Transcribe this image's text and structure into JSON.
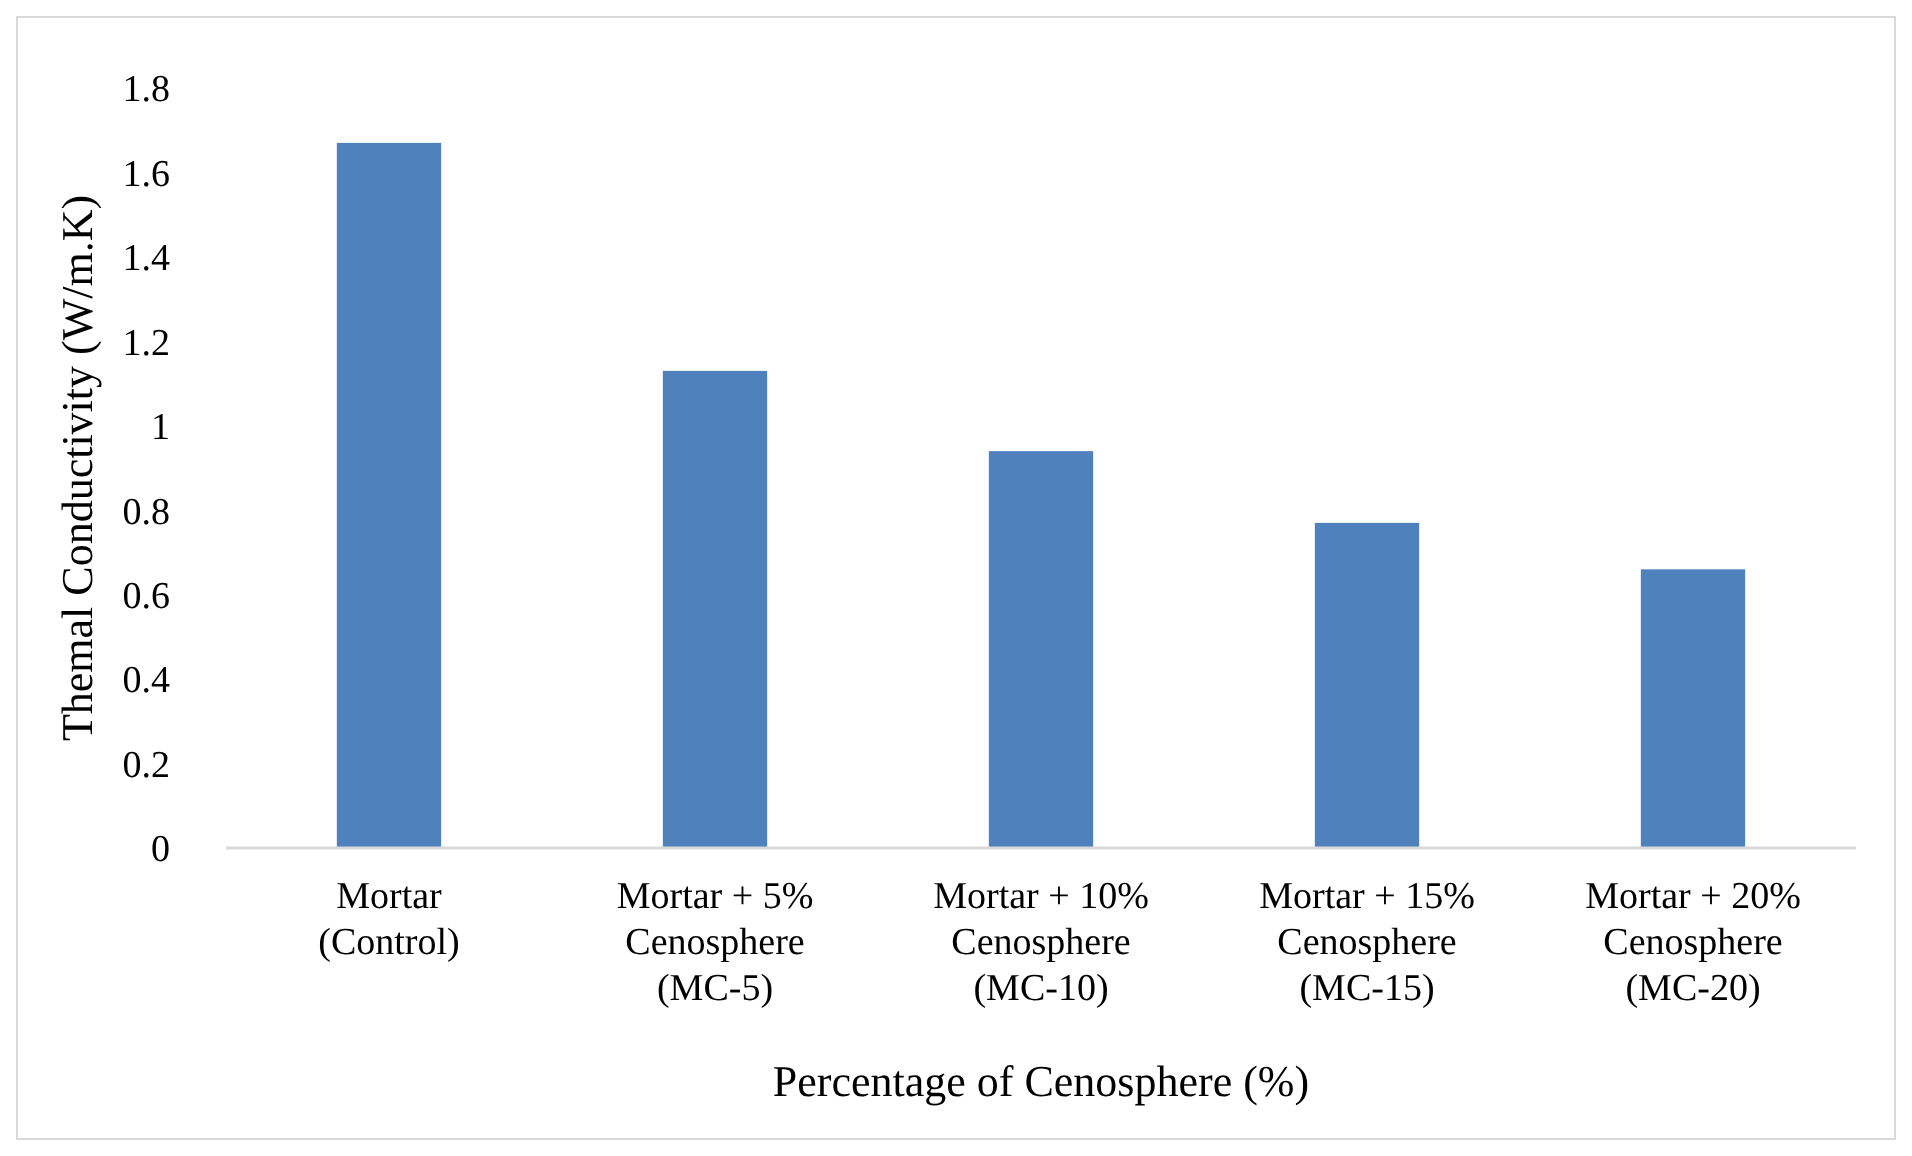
{
  "chart_data": {
    "type": "bar",
    "xlabel": "Percentage of Cenosphere (%)",
    "ylabel": "Themal Conductivity (W/m.K)",
    "categories": [
      "Mortar\n(Control)",
      "Mortar + 5%\nCenosphere\n(MC-5)",
      "Mortar + 10%\nCenosphere\n(MC-10)",
      "Mortar + 15%\nCenosphere\n(MC-15)",
      "Mortar + 20%\nCenosphere\n(MC-20)"
    ],
    "values": [
      1.67,
      1.13,
      0.94,
      0.77,
      0.66
    ],
    "color": "#4f81bd",
    "ylim": [
      0,
      1.8
    ],
    "yticks": [
      0,
      {
        "value": 0.2,
        "label": "0.2"
      },
      {
        "value": 0.4,
        "label": "0.4"
      },
      {
        "value": 0.6,
        "label": "0.6"
      },
      {
        "value": 0.8,
        "label": "0.8"
      },
      1,
      {
        "value": 1.2,
        "label": "1.2"
      },
      {
        "value": 1.4,
        "label": "1.4"
      },
      {
        "value": 1.6,
        "label": "1.6"
      },
      {
        "value": 1.8,
        "label": "1.8"
      }
    ],
    "grid": false
  }
}
